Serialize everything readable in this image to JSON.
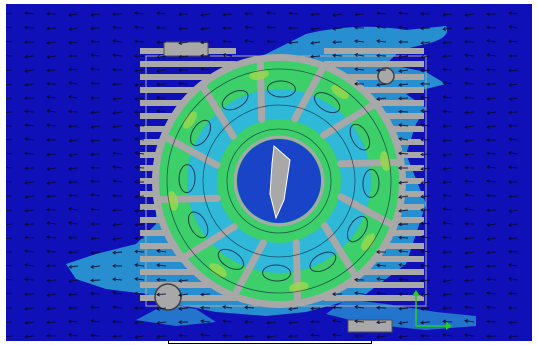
{
  "colors": {
    "background": "#1010b8",
    "field_low": "#1a44c8",
    "field_mid": "#2fb8d8",
    "field_high": "#3ccf6a",
    "field_peak": "#9ad84a",
    "metal": "#a8a8a8",
    "vector": "#0a0a30",
    "triad_x": "#20d020",
    "triad_y": "#20d020"
  },
  "icons": {
    "triad": "coordinate-triad-icon"
  }
}
